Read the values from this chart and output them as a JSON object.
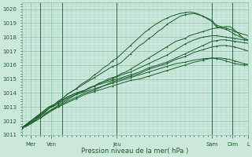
{
  "bg_color": "#cce8dc",
  "grid_minor_color": "#aad4c4",
  "grid_major_color": "#88c0a8",
  "line_color": "#1a5c2a",
  "xlabel": "Pression niveau de la mer( hPa )",
  "ylim": [
    1011,
    1020.5
  ],
  "xlim": [
    0,
    100
  ],
  "yticks": [
    1011,
    1012,
    1013,
    1014,
    1015,
    1016,
    1017,
    1018,
    1019,
    1020
  ],
  "day_lines_x": [
    8,
    18,
    42,
    84,
    93
  ],
  "xtick_data": [
    [
      4,
      "Mer"
    ],
    [
      13,
      "Ven"
    ],
    [
      42,
      "Jeu"
    ],
    [
      84,
      "Sam"
    ],
    [
      93,
      "Dim"
    ],
    [
      100,
      "L"
    ]
  ],
  "lines": [
    {
      "x": [
        0,
        2,
        4,
        6,
        8,
        10,
        12,
        14,
        16,
        18,
        20,
        22,
        24,
        26,
        28,
        30,
        32,
        34,
        36,
        38,
        40,
        42,
        44,
        46,
        48,
        50,
        52,
        54,
        56,
        58,
        60,
        62,
        64,
        66,
        68,
        70,
        72,
        74,
        76,
        78,
        80,
        82,
        84,
        86,
        88,
        90,
        92,
        94,
        96,
        98,
        100
      ],
      "y": [
        1011.5,
        1011.6,
        1011.8,
        1012.0,
        1012.2,
        1012.4,
        1012.7,
        1012.9,
        1013.1,
        1013.3,
        1013.5,
        1013.7,
        1013.9,
        1014.0,
        1014.2,
        1014.4,
        1014.5,
        1014.7,
        1014.8,
        1015.0,
        1015.1,
        1015.2,
        1015.4,
        1015.5,
        1015.7,
        1015.9,
        1016.1,
        1016.3,
        1016.5,
        1016.7,
        1016.9,
        1017.1,
        1017.3,
        1017.5,
        1017.7,
        1017.8,
        1017.9,
        1018.1,
        1018.2,
        1018.3,
        1018.4,
        1018.5,
        1018.6,
        1018.65,
        1018.7,
        1018.75,
        1018.75,
        1018.5,
        1018.2,
        1017.9,
        1017.8
      ]
    },
    {
      "x": [
        0,
        4,
        8,
        12,
        16,
        20,
        24,
        28,
        32,
        36,
        40,
        44,
        48,
        52,
        56,
        60,
        64,
        68,
        72,
        76,
        80,
        84,
        86,
        88,
        90,
        92,
        94,
        96,
        98,
        100
      ],
      "y": [
        1011.5,
        1011.8,
        1012.2,
        1012.6,
        1013.0,
        1013.4,
        1013.7,
        1014.0,
        1014.2,
        1014.5,
        1014.7,
        1014.9,
        1015.1,
        1015.3,
        1015.5,
        1015.7,
        1015.9,
        1016.1,
        1016.2,
        1016.35,
        1016.45,
        1016.5,
        1016.45,
        1016.4,
        1016.3,
        1016.2,
        1016.1,
        1016.05,
        1016.0,
        1016.0
      ]
    },
    {
      "x": [
        0,
        4,
        8,
        12,
        16,
        20,
        24,
        28,
        32,
        36,
        40,
        44,
        48,
        52,
        56,
        60,
        64,
        68,
        72,
        76,
        80,
        84,
        86,
        88,
        90,
        92,
        94,
        96,
        98,
        100
      ],
      "y": [
        1011.5,
        1011.9,
        1012.3,
        1012.7,
        1013.0,
        1013.3,
        1013.6,
        1013.9,
        1014.1,
        1014.3,
        1014.5,
        1014.7,
        1014.9,
        1015.0,
        1015.2,
        1015.4,
        1015.6,
        1015.8,
        1016.0,
        1016.2,
        1016.35,
        1016.5,
        1016.5,
        1016.5,
        1016.45,
        1016.4,
        1016.3,
        1016.2,
        1016.1,
        1016.05
      ]
    },
    {
      "x": [
        0,
        4,
        8,
        12,
        16,
        20,
        24,
        28,
        32,
        36,
        40,
        44,
        48,
        52,
        56,
        60,
        64,
        68,
        72,
        76,
        80,
        84,
        86,
        88,
        90,
        92,
        94,
        96,
        98,
        100
      ],
      "y": [
        1011.5,
        1012.0,
        1012.4,
        1012.9,
        1013.2,
        1013.6,
        1013.9,
        1014.1,
        1014.3,
        1014.5,
        1014.8,
        1015.0,
        1015.2,
        1015.4,
        1015.7,
        1015.9,
        1016.1,
        1016.4,
        1016.6,
        1016.9,
        1017.1,
        1017.3,
        1017.35,
        1017.4,
        1017.4,
        1017.35,
        1017.3,
        1017.2,
        1017.1,
        1017.0
      ]
    },
    {
      "x": [
        0,
        4,
        8,
        12,
        16,
        20,
        24,
        28,
        32,
        36,
        40,
        44,
        48,
        52,
        56,
        60,
        64,
        68,
        72,
        76,
        80,
        84,
        86,
        88,
        90,
        92,
        94,
        96,
        98,
        100
      ],
      "y": [
        1011.5,
        1012.0,
        1012.5,
        1013.0,
        1013.3,
        1013.7,
        1014.0,
        1014.2,
        1014.5,
        1014.7,
        1014.9,
        1015.1,
        1015.3,
        1015.5,
        1015.8,
        1016.0,
        1016.2,
        1016.5,
        1016.8,
        1017.1,
        1017.4,
        1017.7,
        1017.75,
        1017.8,
        1017.8,
        1017.75,
        1017.7,
        1017.65,
        1017.6,
        1017.55
      ]
    },
    {
      "x": [
        0,
        4,
        8,
        12,
        16,
        20,
        24,
        28,
        32,
        36,
        40,
        44,
        48,
        52,
        56,
        60,
        64,
        68,
        72,
        76,
        80,
        84,
        86,
        88,
        90,
        92,
        94,
        96,
        98,
        100
      ],
      "y": [
        1011.5,
        1012.0,
        1012.5,
        1013.0,
        1013.3,
        1013.7,
        1014.0,
        1014.2,
        1014.5,
        1014.8,
        1015.0,
        1015.3,
        1015.5,
        1015.8,
        1016.1,
        1016.4,
        1016.7,
        1017.1,
        1017.5,
        1017.8,
        1018.0,
        1018.1,
        1018.1,
        1018.05,
        1018.0,
        1017.95,
        1017.9,
        1017.85,
        1017.8,
        1017.75
      ]
    },
    {
      "x": [
        0,
        2,
        4,
        6,
        8,
        10,
        12,
        14,
        16,
        18,
        20,
        22,
        24,
        26,
        28,
        30,
        32,
        34,
        36,
        38,
        40,
        42,
        44,
        46,
        48,
        50,
        52,
        54,
        56,
        58,
        60,
        62,
        64,
        66,
        68,
        70,
        72,
        74,
        76,
        78,
        80,
        82,
        84,
        85,
        86,
        87,
        88,
        89,
        90,
        91,
        92,
        93,
        94,
        96,
        98,
        100
      ],
      "y": [
        1011.5,
        1011.7,
        1011.9,
        1012.1,
        1012.4,
        1012.6,
        1012.9,
        1013.1,
        1013.4,
        1013.6,
        1013.9,
        1014.1,
        1014.3,
        1014.5,
        1014.7,
        1014.9,
        1015.1,
        1015.3,
        1015.5,
        1015.7,
        1015.9,
        1016.0,
        1016.2,
        1016.5,
        1016.8,
        1017.1,
        1017.4,
        1017.6,
        1017.9,
        1018.1,
        1018.4,
        1018.6,
        1018.9,
        1019.1,
        1019.3,
        1019.5,
        1019.6,
        1019.65,
        1019.7,
        1019.6,
        1019.5,
        1019.35,
        1019.2,
        1019.0,
        1018.85,
        1018.8,
        1018.75,
        1018.7,
        1018.65,
        1018.6,
        1018.55,
        1018.5,
        1018.4,
        1018.3,
        1018.2,
        1018.1
      ]
    },
    {
      "x": [
        0,
        2,
        4,
        6,
        8,
        10,
        12,
        14,
        16,
        18,
        20,
        22,
        24,
        26,
        28,
        30,
        32,
        34,
        36,
        38,
        40,
        42,
        44,
        46,
        48,
        50,
        52,
        54,
        56,
        58,
        60,
        62,
        64,
        66,
        68,
        70,
        72,
        74,
        76,
        78,
        80,
        82,
        84,
        85,
        86,
        87,
        88,
        89,
        90,
        91,
        92,
        93,
        94,
        96,
        98,
        100
      ],
      "y": [
        1011.5,
        1011.7,
        1011.9,
        1012.1,
        1012.4,
        1012.6,
        1012.9,
        1013.1,
        1013.4,
        1013.6,
        1013.9,
        1014.1,
        1014.3,
        1014.6,
        1014.8,
        1015.0,
        1015.3,
        1015.5,
        1015.8,
        1016.0,
        1016.3,
        1016.5,
        1016.8,
        1017.1,
        1017.4,
        1017.7,
        1018.0,
        1018.3,
        1018.55,
        1018.8,
        1019.0,
        1019.2,
        1019.35,
        1019.5,
        1019.6,
        1019.7,
        1019.75,
        1019.8,
        1019.75,
        1019.65,
        1019.5,
        1019.3,
        1019.1,
        1018.9,
        1018.75,
        1018.7,
        1018.65,
        1018.6,
        1018.55,
        1018.5,
        1018.4,
        1018.3,
        1018.2,
        1018.05,
        1017.9,
        1017.8
      ]
    }
  ],
  "wiggly_line": {
    "x": [
      8,
      10,
      12,
      14,
      16,
      18,
      20,
      22,
      24,
      26,
      28,
      30,
      32,
      34,
      36,
      38,
      40,
      42
    ],
    "y": [
      1013.3,
      1013.6,
      1013.9,
      1014.1,
      1014.4,
      1014.6,
      1014.3,
      1014.5,
      1014.7,
      1014.9,
      1015.0,
      1015.2,
      1015.1,
      1015.3,
      1015.5,
      1015.7,
      1015.4,
      1015.2
    ]
  }
}
